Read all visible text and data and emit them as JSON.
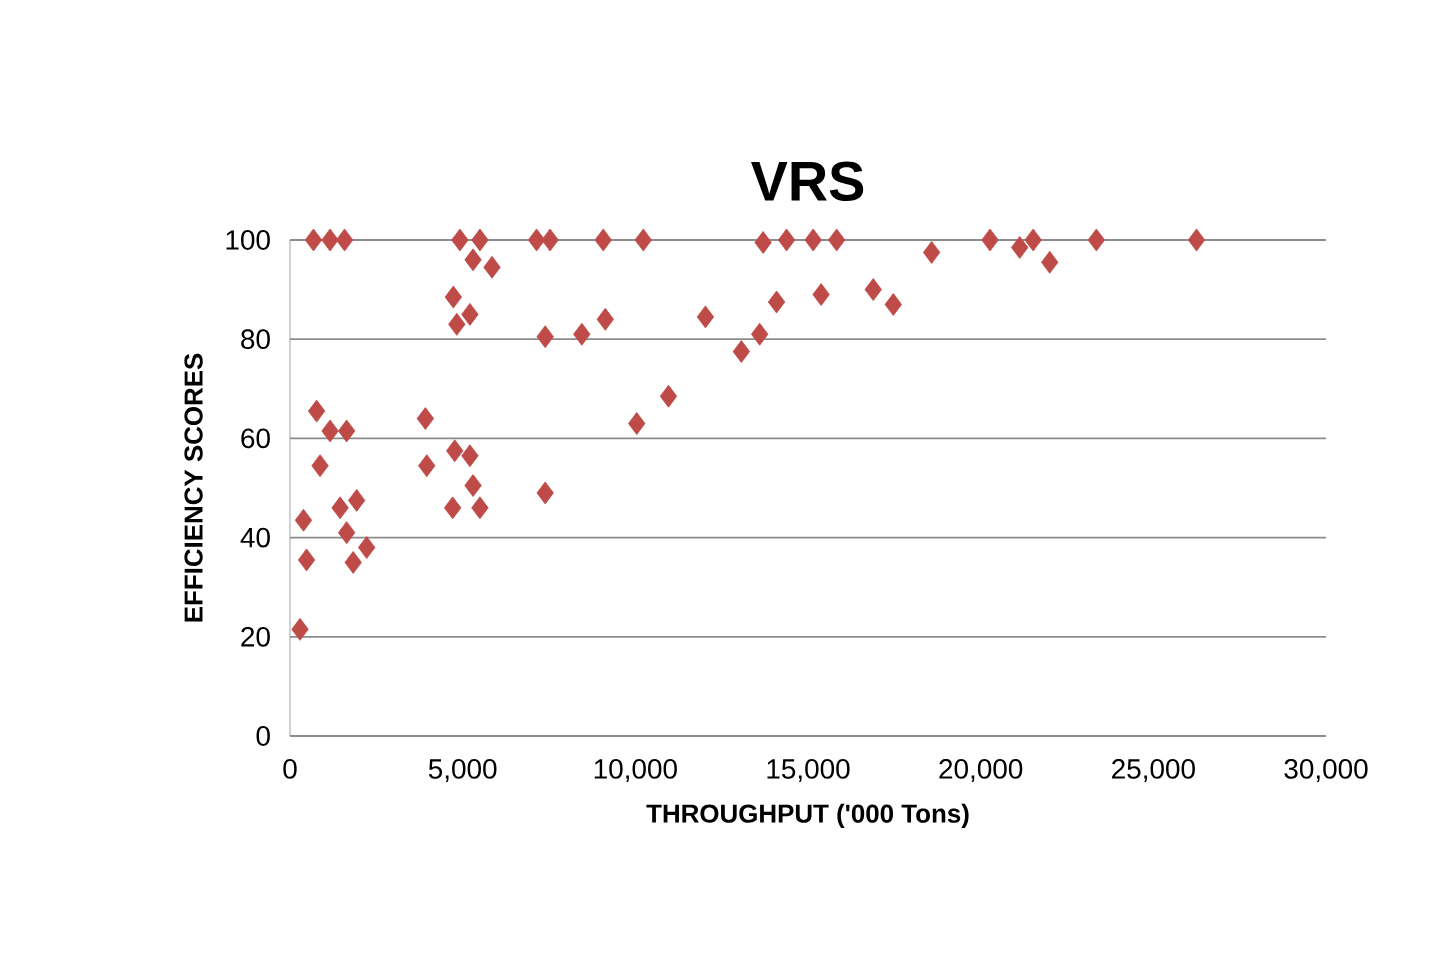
{
  "chart_data": {
    "type": "scatter",
    "title": "VRS",
    "xlabel": "THROUGHPUT ('000 Tons)",
    "ylabel": "EFFICIENCY SCORES",
    "x": [
      680,
      1160,
      1580,
      4920,
      5500,
      5300,
      5850,
      4730,
      5210,
      4830,
      7390,
      8450,
      9130,
      7140,
      7530,
      9070,
      10230,
      10040,
      10960,
      770,
      1160,
      1640,
      870,
      3920,
      3960,
      4770,
      5210,
      5300,
      4710,
      5500,
      7390,
      390,
      480,
      290,
      1450,
      1930,
      1640,
      2220,
      1830,
      12030,
      13070,
      13600,
      14090,
      13700,
      14380,
      15150,
      15830,
      15380,
      16890,
      17470,
      18580,
      20270,
      21130,
      21520,
      22000,
      23350,
      26250
    ],
    "values": [
      100,
      100,
      100,
      100,
      100,
      96,
      94.5,
      88.5,
      85,
      83,
      80.5,
      81,
      84,
      100,
      100,
      100,
      100,
      63,
      68.5,
      65.5,
      61.5,
      61.5,
      54.5,
      64,
      54.5,
      57.5,
      56.5,
      50.5,
      46,
      46,
      49,
      43.5,
      35.5,
      21.5,
      46,
      47.5,
      41,
      38,
      35,
      84.5,
      77.5,
      81,
      87.5,
      99.5,
      100,
      100,
      100,
      89,
      90,
      87,
      97.5,
      100,
      98.5,
      100,
      95.5,
      100,
      100
    ],
    "color": "#be4b48",
    "marker": "diamond",
    "xlim": [
      0,
      30000
    ],
    "xticks": [
      0,
      {
        "value": 5000,
        "label": "5,000"
      },
      {
        "value": 10000,
        "label": "10,000"
      },
      {
        "value": 15000,
        "label": "15,000"
      },
      {
        "value": 20000,
        "label": "20,000"
      },
      {
        "value": 25000,
        "label": "25,000"
      },
      {
        "value": 30000,
        "label": "30,000"
      }
    ],
    "ylim": [
      0,
      100
    ],
    "yticks": [
      0,
      20,
      40,
      60,
      80,
      100
    ],
    "grid": "y"
  }
}
